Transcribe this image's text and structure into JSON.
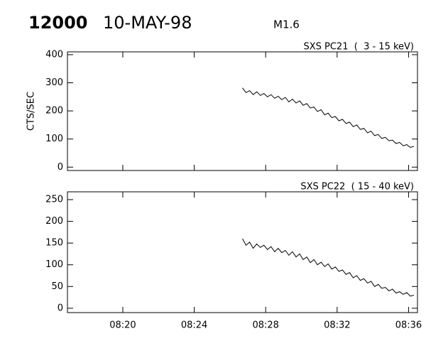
{
  "header": {
    "id": "12000",
    "date": "10-MAY-98",
    "class": "M1.6"
  },
  "chart_data": [
    {
      "type": "line",
      "title": "SXS PC21  (  3 - 15 keV)",
      "y_label": "CTS/SEC",
      "color": "#000000",
      "x": [
        506.7,
        506.9,
        507.1,
        507.3,
        507.5,
        507.7,
        507.9,
        508.1,
        508.3,
        508.5,
        508.7,
        508.9,
        509.1,
        509.3,
        509.5,
        509.7,
        509.9,
        510.1,
        510.3,
        510.5,
        510.7,
        510.9,
        511.1,
        511.3,
        511.5,
        511.7,
        511.9,
        512.1,
        512.3,
        512.5,
        512.7,
        512.9,
        513.1,
        513.3,
        513.5,
        513.7,
        513.9,
        514.1,
        514.3,
        514.5,
        514.7,
        514.9,
        515.1,
        515.3,
        515.5,
        515.7,
        515.9,
        516.1,
        516.3
      ],
      "values": [
        282,
        265,
        272,
        258,
        268,
        255,
        262,
        250,
        258,
        245,
        252,
        240,
        248,
        232,
        242,
        228,
        236,
        220,
        226,
        210,
        214,
        198,
        204,
        186,
        192,
        176,
        180,
        165,
        170,
        155,
        160,
        144,
        150,
        134,
        138,
        122,
        128,
        112,
        116,
        102,
        106,
        94,
        96,
        84,
        88,
        76,
        80,
        70,
        74
      ],
      "xlim": [
        496.9,
        516.5
      ],
      "ylim": [
        -12,
        410
      ],
      "yticks": [
        0,
        100,
        200,
        300,
        400
      ]
    },
    {
      "type": "line",
      "title": "SXS PC22  ( 15 - 40 keV)",
      "color": "#000000",
      "x": [
        506.7,
        506.9,
        507.1,
        507.3,
        507.5,
        507.7,
        507.9,
        508.1,
        508.3,
        508.5,
        508.7,
        508.9,
        509.1,
        509.3,
        509.5,
        509.7,
        509.9,
        510.1,
        510.3,
        510.5,
        510.7,
        510.9,
        511.1,
        511.3,
        511.5,
        511.7,
        511.9,
        512.1,
        512.3,
        512.5,
        512.7,
        512.9,
        513.1,
        513.3,
        513.5,
        513.7,
        513.9,
        514.1,
        514.3,
        514.5,
        514.7,
        514.9,
        515.1,
        515.3,
        515.5,
        515.7,
        515.9,
        516.1,
        516.3
      ],
      "values": [
        160,
        145,
        152,
        138,
        148,
        140,
        145,
        135,
        142,
        130,
        138,
        128,
        133,
        122,
        130,
        118,
        125,
        112,
        118,
        105,
        112,
        100,
        106,
        96,
        102,
        90,
        95,
        85,
        88,
        78,
        82,
        70,
        75,
        64,
        68,
        58,
        62,
        50,
        55,
        46,
        48,
        40,
        44,
        35,
        38,
        32,
        36,
        28,
        30
      ],
      "xlim": [
        496.9,
        516.5
      ],
      "ylim": [
        -10,
        268
      ],
      "yticks": [
        0,
        50,
        100,
        150,
        200,
        250
      ],
      "xticks": [
        {
          "value": 500,
          "label": "08:20"
        },
        {
          "value": 504,
          "label": "08:24"
        },
        {
          "value": 508,
          "label": "08:28"
        },
        {
          "value": 512,
          "label": "08:32"
        },
        {
          "value": 516,
          "label": "08:36"
        }
      ]
    }
  ]
}
